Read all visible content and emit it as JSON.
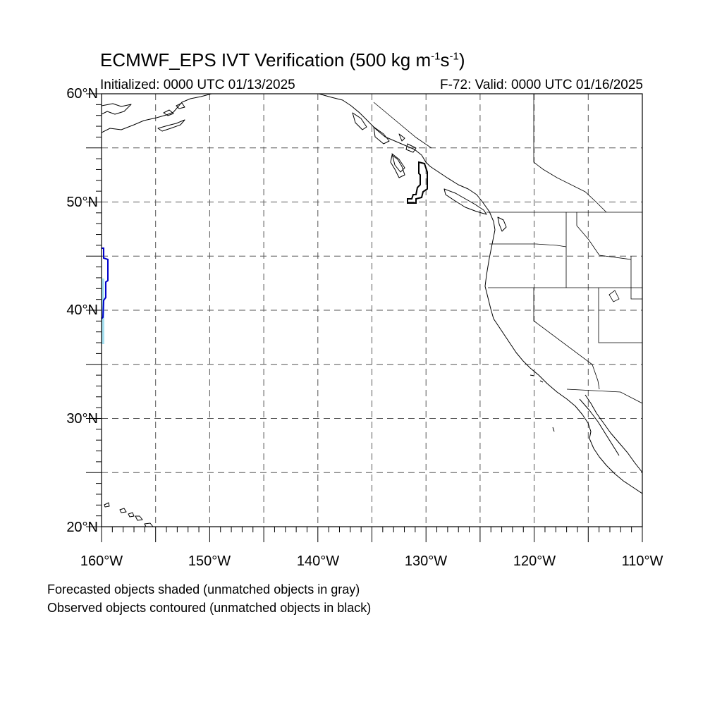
{
  "title": {
    "prefix": "ECMWF_EPS IVT Verification (500 kg m",
    "sup1": "-1",
    "middle": "s",
    "sup2": "-1",
    "suffix": ")"
  },
  "initialized": "Initialized: 0000 UTC 01/13/2025",
  "valid": "F-72: Valid: 0000 UTC 01/16/2025",
  "lat_labels": [
    "60°N",
    "50°N",
    "40°N",
    "30°N",
    "20°N"
  ],
  "lon_labels": [
    "160°W",
    "150°W",
    "140°W",
    "130°W",
    "120°W",
    "110°W"
  ],
  "notes": [
    "Forecasted objects shaded (unmatched objects in gray)",
    "Observed objects contoured (unmatched objects in black)"
  ],
  "map": {
    "lon_range": [
      -160,
      -110
    ],
    "lat_range": [
      20,
      60
    ],
    "grid_lon": [
      -155,
      -150,
      -145,
      -140,
      -135,
      -130,
      -125,
      -120,
      -115
    ],
    "grid_lat": [
      25,
      30,
      35,
      40,
      45,
      50,
      55
    ],
    "colors": {
      "forecast_matched_fill": "#a6e0f0",
      "observed_matched_contour": "#0000cc",
      "observed_unmatched_contour": "#000000"
    }
  }
}
